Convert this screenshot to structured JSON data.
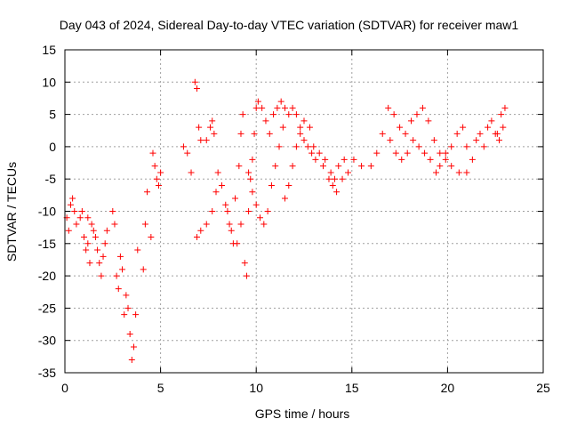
{
  "chart_data": {
    "type": "scatter",
    "title": "Day 043 of 2024, Sidereal Day-to-day VTEC variation (SDTVAR) for receiver maw1",
    "xlabel": "GPS time / hours",
    "ylabel": "SDTVAR / TECUs",
    "xlim": [
      0,
      25
    ],
    "ylim": [
      -35,
      15
    ],
    "xticks": [
      0,
      5,
      10,
      15,
      20,
      25
    ],
    "yticks": [
      -35,
      -30,
      -25,
      -20,
      -15,
      -10,
      -5,
      0,
      5,
      10,
      15
    ],
    "grid": true,
    "marker": "+",
    "color": "#ff0000",
    "series": [
      {
        "name": "maw1",
        "points": [
          [
            0.1,
            -11
          ],
          [
            0.2,
            -13
          ],
          [
            0.3,
            -9
          ],
          [
            0.4,
            -8
          ],
          [
            0.5,
            -10
          ],
          [
            0.6,
            -12
          ],
          [
            0.8,
            -11
          ],
          [
            0.9,
            -10
          ],
          [
            1.0,
            -14
          ],
          [
            1.1,
            -16
          ],
          [
            1.2,
            -15
          ],
          [
            1.3,
            -18
          ],
          [
            1.2,
            -11
          ],
          [
            1.4,
            -12
          ],
          [
            1.5,
            -13
          ],
          [
            1.6,
            -14
          ],
          [
            1.7,
            -16
          ],
          [
            1.8,
            -18
          ],
          [
            1.9,
            -20
          ],
          [
            2.0,
            -17
          ],
          [
            2.1,
            -15
          ],
          [
            2.2,
            -13
          ],
          [
            2.5,
            -10
          ],
          [
            2.6,
            -12
          ],
          [
            2.7,
            -20
          ],
          [
            2.8,
            -22
          ],
          [
            2.9,
            -17
          ],
          [
            3.0,
            -19
          ],
          [
            3.1,
            -26
          ],
          [
            3.2,
            -23
          ],
          [
            3.3,
            -25
          ],
          [
            3.4,
            -29
          ],
          [
            3.5,
            -33
          ],
          [
            3.6,
            -31
          ],
          [
            3.7,
            -26
          ],
          [
            3.8,
            -16
          ],
          [
            4.1,
            -19
          ],
          [
            4.2,
            -12
          ],
          [
            4.3,
            -7
          ],
          [
            4.5,
            -14
          ],
          [
            4.6,
            -1
          ],
          [
            4.7,
            -3
          ],
          [
            4.8,
            -5
          ],
          [
            4.9,
            -6
          ],
          [
            5.0,
            -4
          ],
          [
            6.2,
            0
          ],
          [
            6.4,
            -1
          ],
          [
            6.6,
            -4
          ],
          [
            6.8,
            10
          ],
          [
            6.9,
            9
          ],
          [
            7.0,
            3
          ],
          [
            7.1,
            1
          ],
          [
            7.4,
            1
          ],
          [
            7.6,
            3
          ],
          [
            7.7,
            4
          ],
          [
            7.8,
            2
          ],
          [
            6.9,
            -14
          ],
          [
            7.1,
            -13
          ],
          [
            7.4,
            -12
          ],
          [
            7.7,
            -10
          ],
          [
            7.9,
            -7
          ],
          [
            8.0,
            -4
          ],
          [
            8.2,
            -6
          ],
          [
            8.4,
            -9
          ],
          [
            8.6,
            -12
          ],
          [
            8.8,
            -15
          ],
          [
            8.5,
            -10
          ],
          [
            8.7,
            -13
          ],
          [
            8.9,
            -8
          ],
          [
            9.0,
            -15
          ],
          [
            9.2,
            -12
          ],
          [
            9.4,
            -18
          ],
          [
            9.5,
            -20
          ],
          [
            9.6,
            -10
          ],
          [
            9.7,
            -5
          ],
          [
            9.8,
            -2
          ],
          [
            9.9,
            2
          ],
          [
            10.0,
            6
          ],
          [
            10.1,
            7
          ],
          [
            10.3,
            6
          ],
          [
            10.5,
            4
          ],
          [
            10.7,
            2
          ],
          [
            9.1,
            -3
          ],
          [
            9.2,
            2
          ],
          [
            9.3,
            5
          ],
          [
            9.6,
            -4
          ],
          [
            9.8,
            -7
          ],
          [
            10.0,
            -9
          ],
          [
            10.2,
            -11
          ],
          [
            10.4,
            -12
          ],
          [
            10.6,
            -10
          ],
          [
            10.8,
            -6
          ],
          [
            11.0,
            -3
          ],
          [
            11.2,
            0
          ],
          [
            11.4,
            3
          ],
          [
            10.9,
            5
          ],
          [
            11.1,
            6
          ],
          [
            11.3,
            7
          ],
          [
            11.5,
            6
          ],
          [
            11.7,
            5
          ],
          [
            11.9,
            6
          ],
          [
            12.1,
            5
          ],
          [
            12.3,
            3
          ],
          [
            12.5,
            1
          ],
          [
            12.7,
            0
          ],
          [
            12.9,
            -1
          ],
          [
            13.1,
            -2
          ],
          [
            11.5,
            -8
          ],
          [
            11.7,
            -6
          ],
          [
            11.9,
            -3
          ],
          [
            12.1,
            0
          ],
          [
            12.3,
            2
          ],
          [
            12.5,
            4
          ],
          [
            12.8,
            3
          ],
          [
            13.0,
            0
          ],
          [
            13.3,
            -1
          ],
          [
            13.6,
            -2
          ],
          [
            13.9,
            -4
          ],
          [
            14.1,
            -5
          ],
          [
            14.3,
            -3
          ],
          [
            14.6,
            -2
          ],
          [
            13.5,
            -3
          ],
          [
            13.8,
            -5
          ],
          [
            14.0,
            -6
          ],
          [
            14.2,
            -7
          ],
          [
            14.5,
            -5
          ],
          [
            14.8,
            -4
          ],
          [
            15.1,
            -2
          ],
          [
            15.5,
            -3
          ],
          [
            16.0,
            -3
          ],
          [
            16.3,
            -1
          ],
          [
            16.6,
            2
          ],
          [
            16.9,
            6
          ],
          [
            17.2,
            5
          ],
          [
            17.5,
            3
          ],
          [
            17.8,
            2
          ],
          [
            18.1,
            4
          ],
          [
            18.4,
            5
          ],
          [
            18.7,
            6
          ],
          [
            19.0,
            4
          ],
          [
            19.3,
            1
          ],
          [
            19.6,
            -1
          ],
          [
            19.9,
            -2
          ],
          [
            20.2,
            0
          ],
          [
            20.5,
            2
          ],
          [
            20.8,
            3
          ],
          [
            21.0,
            0
          ],
          [
            21.3,
            -2
          ],
          [
            17.0,
            1
          ],
          [
            17.3,
            -1
          ],
          [
            17.6,
            -2
          ],
          [
            17.9,
            -1
          ],
          [
            18.2,
            1
          ],
          [
            18.5,
            0
          ],
          [
            18.8,
            -1
          ],
          [
            19.1,
            -2
          ],
          [
            19.4,
            -4
          ],
          [
            19.6,
            -3
          ],
          [
            19.9,
            -1
          ],
          [
            20.2,
            -3
          ],
          [
            20.6,
            -4
          ],
          [
            21.0,
            -4
          ],
          [
            21.5,
            1
          ],
          [
            21.7,
            2
          ],
          [
            21.9,
            0
          ],
          [
            22.1,
            3
          ],
          [
            22.3,
            4
          ],
          [
            22.5,
            2
          ],
          [
            22.7,
            1
          ],
          [
            22.9,
            3
          ],
          [
            23.0,
            6
          ],
          [
            22.8,
            5
          ],
          [
            22.6,
            2
          ]
        ]
      }
    ]
  }
}
